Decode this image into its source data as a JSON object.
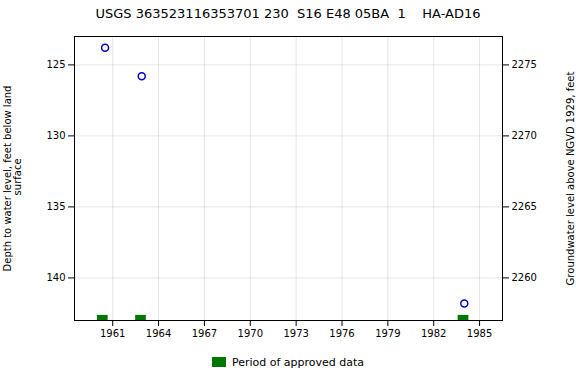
{
  "chart_data": {
    "type": "scatter",
    "title": "USGS 363523116353701 230  S16 E48 05BA  1    HA-AD16",
    "ylabel": "Depth to water level, feet below land\n surface",
    "y2label": "Groundwater level above NGVD 1929, feet",
    "x": [
      1960.5,
      1962.9,
      1984.0
    ],
    "values": [
      123.8,
      125.8,
      141.8
    ],
    "color": "#0000cc",
    "marker": "circle",
    "approved_periods": {
      "name": "Period of approved data",
      "color": "#007700",
      "ranges": [
        [
          1960.0,
          1960.7
        ],
        [
          1962.5,
          1963.2
        ],
        [
          1983.6,
          1984.3
        ]
      ]
    },
    "xlim": [
      1958.5,
      1986.5
    ],
    "xticks": [
      1961,
      1964,
      1967,
      1970,
      1973,
      1976,
      1979,
      1982,
      1985
    ],
    "ylim": [
      143.0,
      123.0
    ],
    "yticks": [
      125,
      130,
      135,
      140
    ],
    "y2lim": [
      2257.0,
      2277.0
    ],
    "y2ticks": [
      2275,
      2270,
      2265,
      2260
    ],
    "grid": true,
    "legend": "bottom"
  }
}
